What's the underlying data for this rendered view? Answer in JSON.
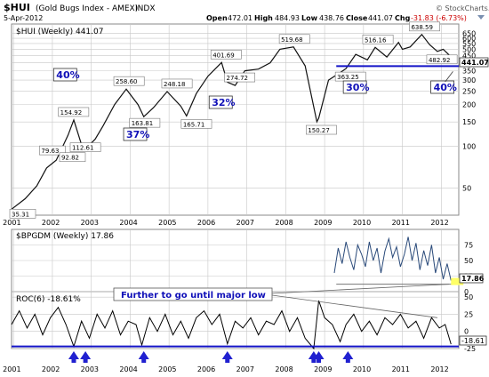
{
  "header": {
    "symbol": "$HUI",
    "name": "(Gold Bugs Index - AMEX)",
    "exchange": "INDX",
    "date": "5-Apr-2012",
    "open_label": "Open",
    "open": "472.01",
    "high_label": "High",
    "high": "484.93",
    "low_label": "Low",
    "low": "438.76",
    "close_label": "Close",
    "close": "441.07",
    "chg_label": "Chg",
    "chg": "-31.83 (-6.73%)",
    "watermark": "© StockCharts.com"
  },
  "colors": {
    "price_line": "#111111",
    "ratio_line": "#2a4a7a",
    "roc_line": "#000000",
    "support_line": "#1414c8",
    "grid": "#c8c8c8",
    "chg_red": "#cc0000",
    "percent_blue": "#1010b8",
    "close_highlight": "#ffff66"
  },
  "chart_data": [
    {
      "type": "line",
      "title": "$HUI (Weekly) 441.07",
      "y_scale": "log",
      "ylim": [
        32,
        760
      ],
      "y_ticks": [
        "650",
        "600",
        "550",
        "500",
        "450",
        "400",
        "350",
        "300",
        "250",
        "200",
        "150",
        "100",
        "50"
      ],
      "x_ticks": [
        "2001",
        "2002",
        "2003",
        "2004",
        "2005",
        "2006",
        "2007",
        "2008",
        "2009",
        "2010",
        "2011",
        "2012"
      ],
      "last_value": "441.07",
      "series": [
        {
          "x": [
            2000.95,
            2001.3,
            2001.6,
            2001.85,
            2002.1,
            2002.4,
            2002.55,
            2002.8,
            2003.1,
            2003.3,
            2003.6,
            2003.9,
            2004.2,
            2004.35,
            2004.6,
            2004.95,
            2005.3,
            2005.45,
            2005.7,
            2006.0,
            2006.35,
            2006.5,
            2006.7,
            2006.95,
            2007.3,
            2007.6,
            2007.85,
            2008.2,
            2008.5,
            2008.8,
            2008.85,
            2009.1,
            2009.4,
            2009.55,
            2009.8,
            2010.1,
            2010.3,
            2010.6,
            2010.9,
            2011.0,
            2011.2,
            2011.5,
            2011.7,
            2011.9,
            2012.05,
            2012.25
          ],
          "values": [
            35.31,
            42,
            52,
            70,
            79.63,
            120,
            154.92,
            92.82,
            112.61,
            140,
            200,
            258.6,
            200,
            163.81,
            190,
            248.18,
            195,
            165.71,
            240,
            320,
            401.69,
            290,
            274.72,
            350,
            360,
            400,
            500,
            519.68,
            380,
            150.27,
            160,
            300,
            340,
            363.25,
            460,
            420,
            516.16,
            440,
            560,
            500,
            520,
            638.59,
            540,
            482.92,
            500,
            441.07
          ]
        }
      ],
      "annotations": [
        "35.31",
        "79.63",
        "92.82",
        "112.61",
        "154.92",
        "163.81",
        "258.60",
        "248.18",
        "165.71",
        "401.69",
        "274.72",
        "519.68",
        "150.27",
        "363.25",
        "516.16",
        "638.59",
        "482.92"
      ],
      "percent_labels": [
        "40%",
        "37%",
        "32%",
        "30%",
        "40%"
      ],
      "support_level": 378
    },
    {
      "type": "line",
      "title": "$BPGDM (Weekly) 17.86",
      "ylim": [
        0,
        100
      ],
      "y_ticks": [
        "75",
        "50",
        "25",
        "0"
      ],
      "last_value": "17.86",
      "series": [
        {
          "x": [
            2009.25,
            2009.35,
            2009.45,
            2009.55,
            2009.65,
            2009.75,
            2009.85,
            2009.95,
            2010.05,
            2010.15,
            2010.25,
            2010.35,
            2010.45,
            2010.55,
            2010.65,
            2010.75,
            2010.85,
            2010.95,
            2011.05,
            2011.15,
            2011.25,
            2011.35,
            2011.45,
            2011.55,
            2011.65,
            2011.75,
            2011.85,
            2011.95,
            2012.05,
            2012.15,
            2012.25
          ],
          "values": [
            30,
            70,
            45,
            80,
            55,
            35,
            75,
            60,
            40,
            80,
            50,
            70,
            30,
            65,
            85,
            55,
            72,
            40,
            60,
            88,
            50,
            78,
            35,
            66,
            42,
            75,
            30,
            55,
            20,
            45,
            17.86
          ]
        }
      ]
    },
    {
      "type": "line",
      "title": "ROC(6) -18.61%",
      "ylim": [
        -25,
        58
      ],
      "y_ticks": [
        "50",
        "25",
        "0",
        "-25"
      ],
      "last_value": "-18.61",
      "annotation": "Further to go until major low",
      "series": [
        {
          "x": [
            2000.95,
            2001.15,
            2001.35,
            2001.55,
            2001.75,
            2001.95,
            2002.15,
            2002.35,
            2002.55,
            2002.75,
            2002.95,
            2003.15,
            2003.35,
            2003.55,
            2003.75,
            2003.95,
            2004.15,
            2004.3,
            2004.5,
            2004.7,
            2004.9,
            2005.1,
            2005.3,
            2005.5,
            2005.7,
            2005.9,
            2006.1,
            2006.3,
            2006.5,
            2006.7,
            2006.9,
            2007.1,
            2007.3,
            2007.5,
            2007.7,
            2007.9,
            2008.1,
            2008.3,
            2008.5,
            2008.72,
            2008.85,
            2009.0,
            2009.2,
            2009.4,
            2009.55,
            2009.75,
            2009.95,
            2010.15,
            2010.35,
            2010.55,
            2010.75,
            2010.95,
            2011.15,
            2011.35,
            2011.55,
            2011.75,
            2011.95,
            2012.1,
            2012.25
          ],
          "values": [
            10,
            30,
            5,
            25,
            -5,
            20,
            35,
            10,
            -22,
            15,
            -10,
            25,
            5,
            30,
            -5,
            15,
            10,
            -20,
            20,
            0,
            25,
            -5,
            15,
            -10,
            20,
            30,
            10,
            25,
            -18,
            15,
            5,
            20,
            -5,
            15,
            10,
            30,
            0,
            20,
            -10,
            -25,
            45,
            20,
            10,
            -15,
            10,
            25,
            0,
            15,
            -5,
            20,
            10,
            25,
            5,
            15,
            -10,
            20,
            5,
            10,
            -18.61
          ]
        }
      ]
    }
  ],
  "support_arrow_years": [
    "2002.55",
    "2002.85",
    "2004.35",
    "2006.5",
    "2008.72",
    "2008.85",
    "2009.6"
  ]
}
